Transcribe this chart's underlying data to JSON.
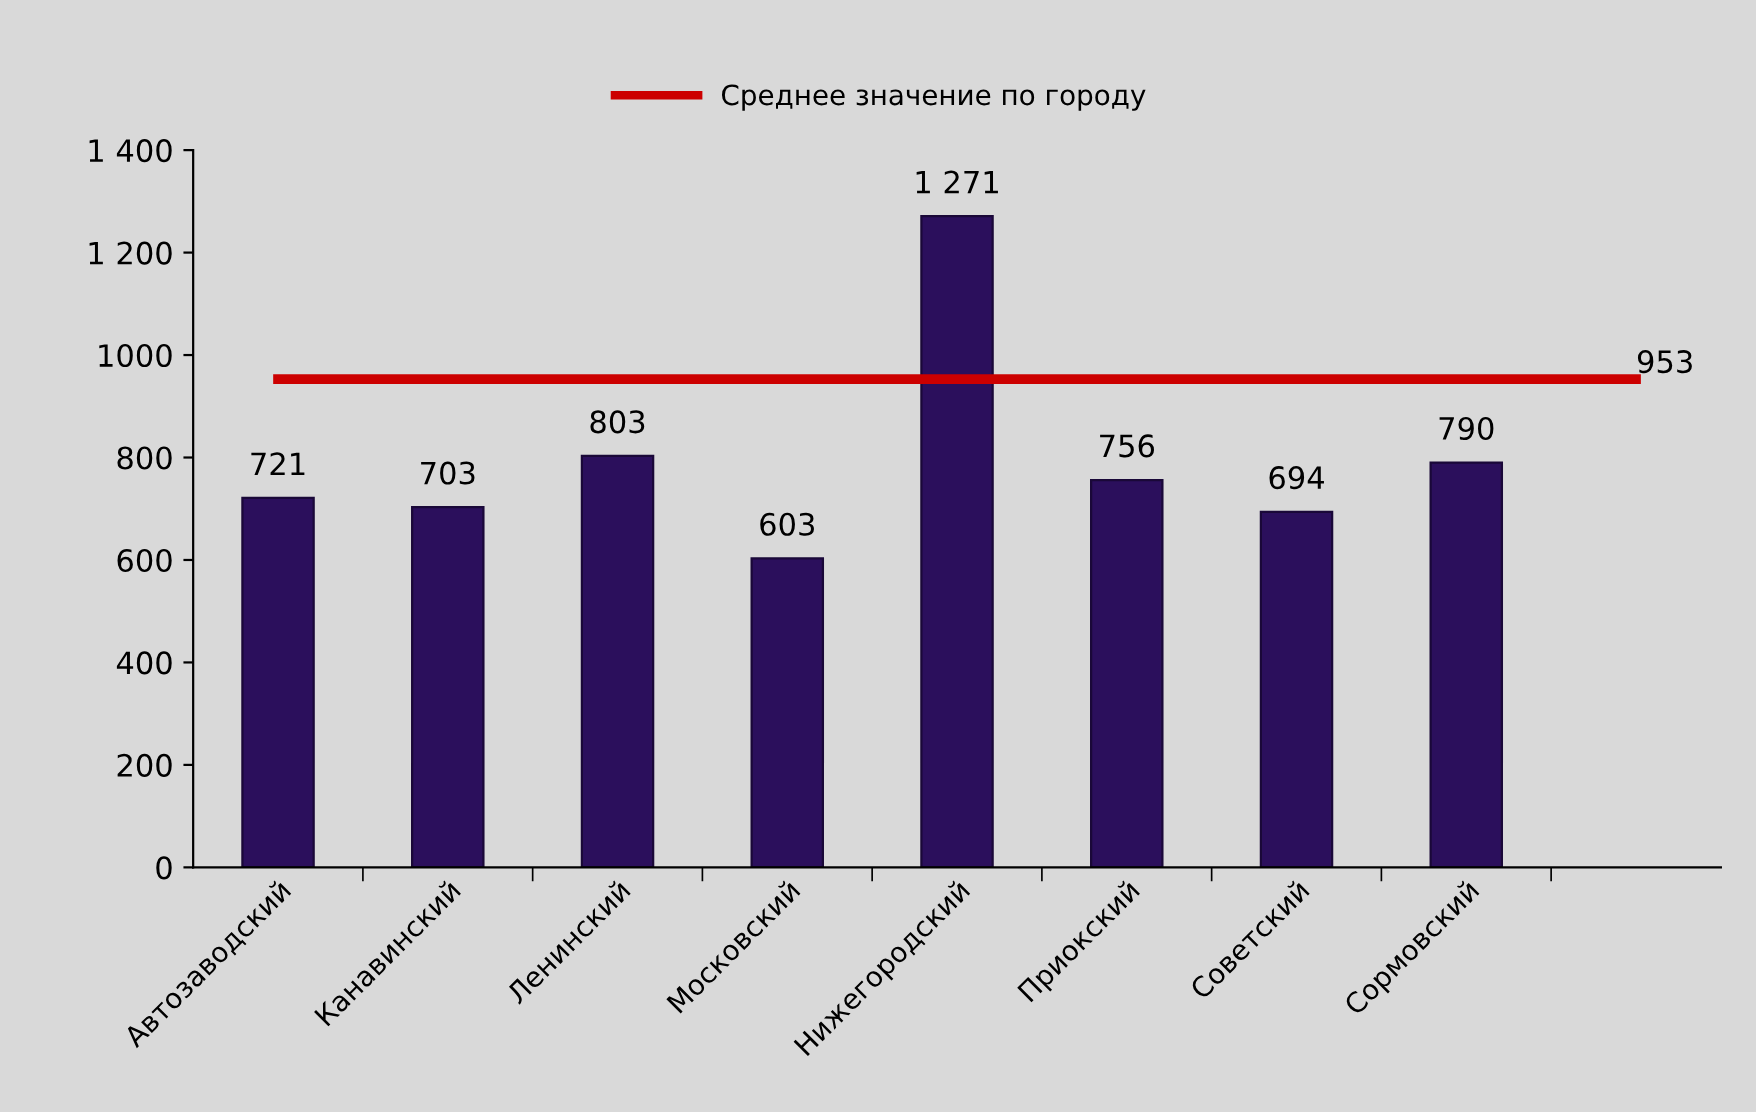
{
  "chart_data": {
    "type": "bar",
    "categories": [
      "Автозаводский",
      "Канавинский",
      "Ленинский",
      "Московский",
      "Нижегородский",
      "Приокский",
      "Советский",
      "Сормовский",
      null
    ],
    "series": [
      {
        "color": "#2b0f5c",
        "values": [
          721,
          703,
          803,
          603,
          1271,
          756,
          694,
          790,
          null
        ],
        "value_labels": [
          "721",
          "703",
          "803",
          "603",
          "1 271",
          "756",
          "694",
          "790",
          null
        ]
      },
      {
        "type": "line",
        "name": "Среднее значение по городу",
        "color": "#cc0000",
        "values": [
          953,
          953,
          953,
          953,
          953,
          953,
          953,
          953,
          953
        ],
        "value_labels": [
          null,
          null,
          null,
          null,
          null,
          null,
          null,
          null,
          "953"
        ]
      }
    ],
    "ylim": [
      0,
      1400
    ],
    "yticks": [
      0,
      200,
      400,
      600,
      800,
      1000,
      {
        "value": 1200,
        "label": "1 200"
      },
      {
        "value": 1400,
        "label": "1 400"
      }
    ],
    "grid": false,
    "legend": "top",
    "marker": "none",
    "line_style": "solid"
  }
}
